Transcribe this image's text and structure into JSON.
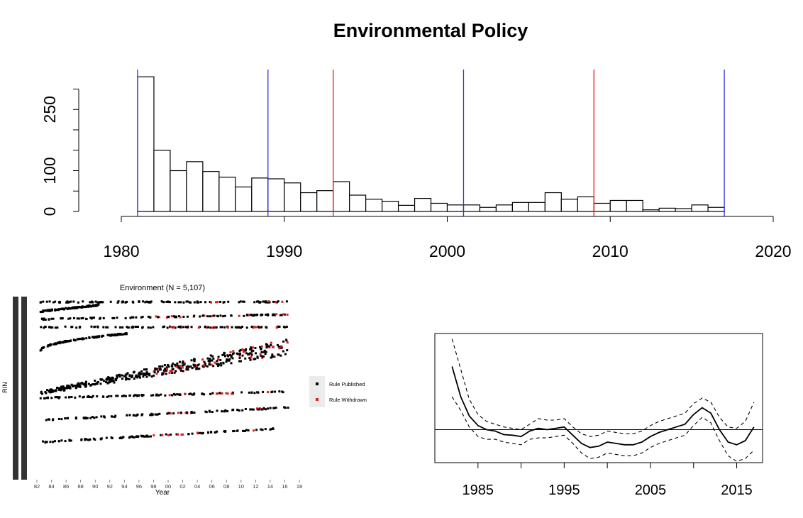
{
  "chart_data": [
    {
      "type": "bar",
      "title": "Environmental Policy",
      "xlabel": "",
      "ylabel": "",
      "x_ticks": [
        "1980",
        "1990",
        "2000",
        "2010",
        "2020"
      ],
      "y_ticks": [
        "0",
        "100",
        "250"
      ],
      "xlim": [
        1980,
        2020
      ],
      "ylim": [
        0,
        300
      ],
      "bin_width": 1,
      "bin_starts": [
        1981,
        1982,
        1983,
        1984,
        1985,
        1986,
        1987,
        1988,
        1989,
        1990,
        1991,
        1992,
        1993,
        1994,
        1995,
        1996,
        1997,
        1998,
        1999,
        2000,
        2001,
        2002,
        2003,
        2004,
        2005,
        2006,
        2007,
        2008,
        2009,
        2010,
        2011,
        2012,
        2013,
        2014,
        2015,
        2016
      ],
      "values": [
        330,
        150,
        100,
        122,
        98,
        84,
        60,
        82,
        80,
        70,
        46,
        51,
        73,
        40,
        30,
        25,
        15,
        32,
        20,
        16,
        16,
        10,
        16,
        22,
        22,
        46,
        30,
        36,
        20,
        27,
        27,
        4,
        8,
        7,
        16,
        10
      ],
      "vertical_lines": [
        {
          "x": 1981,
          "color": "#3030e0"
        },
        {
          "x": 1989,
          "color": "#3030e0"
        },
        {
          "x": 1993,
          "color": "#e02020"
        },
        {
          "x": 2001,
          "color": "#3030e0"
        },
        {
          "x": 2009,
          "color": "#e02020"
        },
        {
          "x": 2017,
          "color": "#3030e0"
        }
      ],
      "grid": false
    },
    {
      "type": "scatter",
      "title": "Environment (N = 5,107)",
      "xlabel": "Year",
      "ylabel": "RIN",
      "x_ticks": [
        "82",
        "84",
        "86",
        "88",
        "90",
        "92",
        "94",
        "96",
        "98",
        "00",
        "02",
        "04",
        "06",
        "08",
        "10",
        "12",
        "14",
        "16",
        "18"
      ],
      "legend": {
        "placement": "right",
        "entries": [
          {
            "label": "Rule Published",
            "color": "#000000"
          },
          {
            "label": "Rule Withdrawn",
            "color": "#e02020"
          }
        ]
      },
      "series_bands": [
        {
          "name": "",
          "x_start": 1982.5,
          "x_end": 2016.5,
          "y_start": 0.97,
          "y_end": 0.97,
          "pattern": "flat"
        },
        {
          "name": "",
          "x_start": 1982.5,
          "x_end": 1990.5,
          "y_start": 0.91,
          "y_end": 0.95,
          "pattern": "rising"
        },
        {
          "name": "",
          "x_start": 1982.5,
          "x_end": 2016.5,
          "y_start": 0.86,
          "y_end": 0.89,
          "pattern": "rising"
        },
        {
          "name": "",
          "x_start": 1982.5,
          "x_end": 2016.5,
          "y_start": 0.81,
          "y_end": 0.81,
          "pattern": "flat"
        },
        {
          "name": "",
          "x_start": 1982.5,
          "x_end": 1994.5,
          "y_start": 0.66,
          "y_end": 0.77,
          "pattern": "curve"
        },
        {
          "name": "",
          "x_start": 1982.5,
          "x_end": 2016.5,
          "y_start": 0.4,
          "y_end": 0.73,
          "pattern": "diagonal"
        },
        {
          "name": "",
          "x_start": 1982.5,
          "x_end": 2016.5,
          "y_start": 0.36,
          "y_end": 0.4,
          "pattern": "flat"
        },
        {
          "name": "",
          "x_start": 1982.5,
          "x_end": 2016.5,
          "y_start": 0.22,
          "y_end": 0.3,
          "pattern": "rising"
        },
        {
          "name": "",
          "x_start": 1982.5,
          "x_end": 2016.5,
          "y_start": 0.08,
          "y_end": 0.17,
          "pattern": "rising"
        }
      ],
      "withdrawn_share_by_period": [
        {
          "from": 1982,
          "to": 1998,
          "share": 0.0
        },
        {
          "from": 1998,
          "to": 2017,
          "share": 0.18
        }
      ]
    },
    {
      "type": "line",
      "title": "",
      "xlabel": "",
      "ylabel": "",
      "x_ticks": [
        "1985",
        "1995",
        "2005",
        "2015"
      ],
      "xlim": [
        1980,
        2018
      ],
      "ylim": [
        -1.2,
        3.5
      ],
      "hline": 0,
      "x": [
        1982,
        1983,
        1984,
        1985,
        1986,
        1987,
        1988,
        1989,
        1990,
        1991,
        1992,
        1993,
        1994,
        1995,
        1996,
        1997,
        1998,
        1999,
        2000,
        2001,
        2002,
        2003,
        2004,
        2005,
        2006,
        2007,
        2008,
        2009,
        2010,
        2011,
        2012,
        2013,
        2014,
        2015,
        2016,
        2017
      ],
      "series": [
        {
          "name": "",
          "style": "solid",
          "values": [
            2.3,
            1.2,
            0.5,
            0.15,
            0.0,
            -0.05,
            -0.18,
            -0.2,
            -0.25,
            -0.05,
            0.05,
            0.0,
            0.05,
            0.1,
            -0.2,
            -0.5,
            -0.65,
            -0.6,
            -0.45,
            -0.5,
            -0.55,
            -0.55,
            -0.45,
            -0.25,
            -0.1,
            0.0,
            0.1,
            0.2,
            0.55,
            0.8,
            0.6,
            0.0,
            -0.45,
            -0.55,
            -0.4,
            0.1
          ]
        },
        {
          "name": "",
          "style": "dashed",
          "values": [
            3.3,
            2.2,
            1.1,
            0.55,
            0.3,
            0.2,
            0.1,
            0.05,
            0.0,
            0.2,
            0.4,
            0.35,
            0.35,
            0.4,
            0.1,
            -0.15,
            -0.25,
            -0.2,
            -0.05,
            -0.1,
            -0.15,
            -0.15,
            -0.05,
            0.15,
            0.3,
            0.4,
            0.5,
            0.6,
            0.95,
            1.15,
            1.0,
            0.45,
            0.1,
            0.05,
            0.3,
            1.0
          ]
        },
        {
          "name": "",
          "style": "dashed",
          "values": [
            1.2,
            0.7,
            0.1,
            -0.25,
            -0.35,
            -0.35,
            -0.45,
            -0.5,
            -0.55,
            -0.35,
            -0.3,
            -0.3,
            -0.25,
            -0.2,
            -0.5,
            -0.85,
            -1.05,
            -1.0,
            -0.85,
            -0.9,
            -0.95,
            -0.95,
            -0.85,
            -0.65,
            -0.5,
            -0.4,
            -0.3,
            -0.2,
            0.15,
            0.45,
            0.25,
            -0.4,
            -0.95,
            -1.15,
            -1.05,
            -0.75
          ]
        }
      ],
      "grid": false
    }
  ]
}
